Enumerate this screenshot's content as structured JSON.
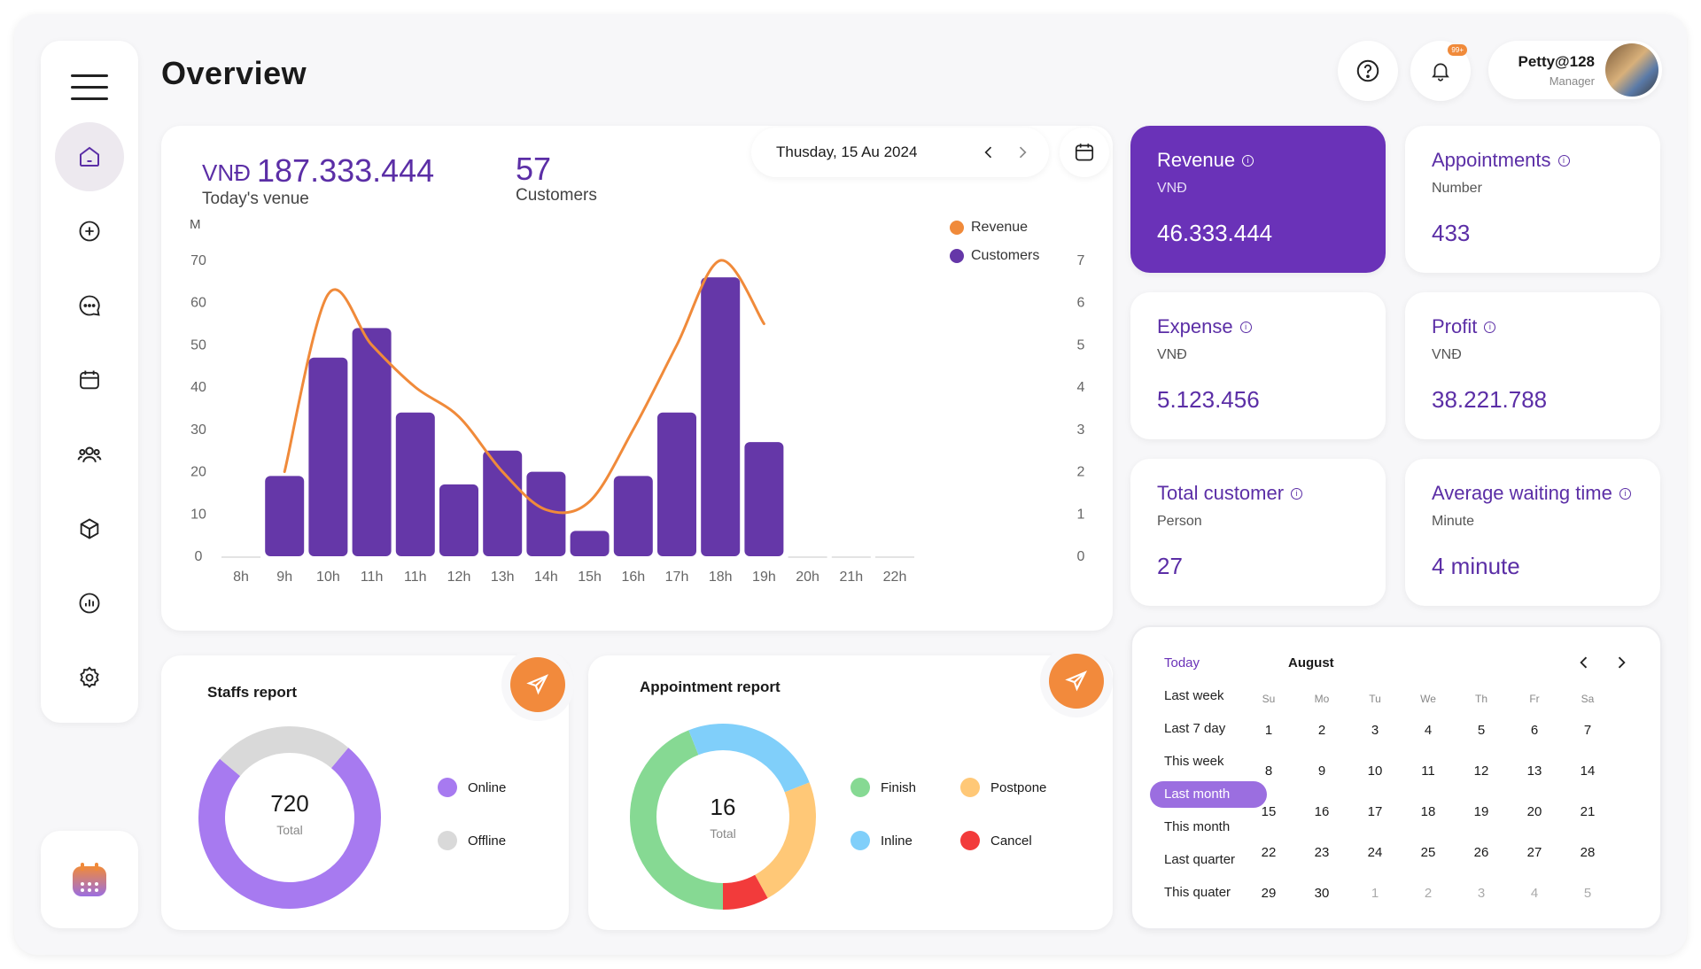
{
  "header": {
    "title": "Overview",
    "notification_badge": "99+",
    "user_name": "Petty@128",
    "user_role": "Manager"
  },
  "sidebar": {
    "icons": [
      "home-icon",
      "add-icon",
      "chat-icon",
      "calendar-icon",
      "users-icon",
      "box-icon",
      "report-icon",
      "settings-icon"
    ]
  },
  "date_picker": {
    "date": "Thusday, 15 Au 2024"
  },
  "summary": {
    "venue_currency": "VNĐ",
    "venue_value": "187.333.444",
    "venue_label": "Today's venue",
    "customers_value": "57",
    "customers_label": "Customers"
  },
  "chart_data": {
    "type": "bar",
    "categories": [
      "8h",
      "9h",
      "10h",
      "11h",
      "11h",
      "12h",
      "13h",
      "14h",
      "15h",
      "16h",
      "17h",
      "18h",
      "19h",
      "20h",
      "21h",
      "22h"
    ],
    "series": [
      {
        "name": "Customers",
        "type": "bar",
        "axis": "right",
        "values": [
          0,
          1.9,
          4.7,
          5.4,
          3.4,
          1.7,
          2.5,
          2.0,
          0.6,
          1.9,
          3.4,
          6.6,
          2.7,
          0,
          0,
          0
        ]
      },
      {
        "name": "Revenue",
        "type": "line",
        "axis": "left",
        "values": [
          null,
          20,
          62,
          50,
          40,
          33,
          20,
          11,
          13,
          30,
          50,
          70,
          55,
          null,
          null,
          null
        ]
      }
    ],
    "ylabel_left": "M",
    "yticks_left": [
      "0",
      "10",
      "20",
      "30",
      "40",
      "50",
      "60",
      "70"
    ],
    "yticks_right": [
      "0",
      "1",
      "2",
      "3",
      "4",
      "5",
      "6",
      "7"
    ],
    "ylim_left": [
      0,
      70
    ],
    "ylim_right": [
      0,
      7
    ],
    "legend": [
      "Revenue",
      "Customers"
    ],
    "colors": {
      "Revenue": "#f08a3a",
      "Customers": "#6537a8"
    }
  },
  "stats": [
    {
      "title": "Revenue",
      "sub": "VNĐ",
      "value": "46.333.444"
    },
    {
      "title": "Appointments",
      "sub": "Number",
      "value": "433"
    },
    {
      "title": "Expense",
      "sub": "VNĐ",
      "value": "5.123.456"
    },
    {
      "title": "Profit",
      "sub": "VNĐ",
      "value": "38.221.788"
    },
    {
      "title": "Total customer",
      "sub": "Person",
      "value": "27"
    },
    {
      "title": "Average waiting time",
      "sub": "Minute",
      "value": "4 minute"
    }
  ],
  "staffs_report": {
    "title": "Staffs report",
    "total": "720",
    "total_label": "Total",
    "legend": [
      "Online",
      "Offline"
    ],
    "shares": [
      75,
      25
    ]
  },
  "appointment_report": {
    "title": "Appointment report",
    "total": "16",
    "total_label": "Total",
    "legend": [
      "Finish",
      "Postpone",
      "Inline",
      "Cancel"
    ],
    "shares": [
      44,
      25,
      23,
      8
    ]
  },
  "calendar": {
    "presets": [
      "Today",
      "Last week",
      "Last 7 day",
      "This week",
      "Last month",
      "This month",
      "Last quarter",
      "This quater"
    ],
    "selected": "Last month",
    "month": "August",
    "dow": [
      "Su",
      "Mo",
      "Tu",
      "We",
      "Th",
      "Fr",
      "Sa"
    ],
    "weeks": [
      [
        "1",
        "2",
        "3",
        "4",
        "5",
        "6",
        "7"
      ],
      [
        "8",
        "9",
        "10",
        "11",
        "12",
        "13",
        "14"
      ],
      [
        "15",
        "16",
        "17",
        "18",
        "19",
        "20",
        "21"
      ],
      [
        "22",
        "23",
        "24",
        "25",
        "26",
        "27",
        "28"
      ],
      [
        "29",
        "30",
        "1",
        "2",
        "3",
        "4",
        "5"
      ]
    ]
  }
}
